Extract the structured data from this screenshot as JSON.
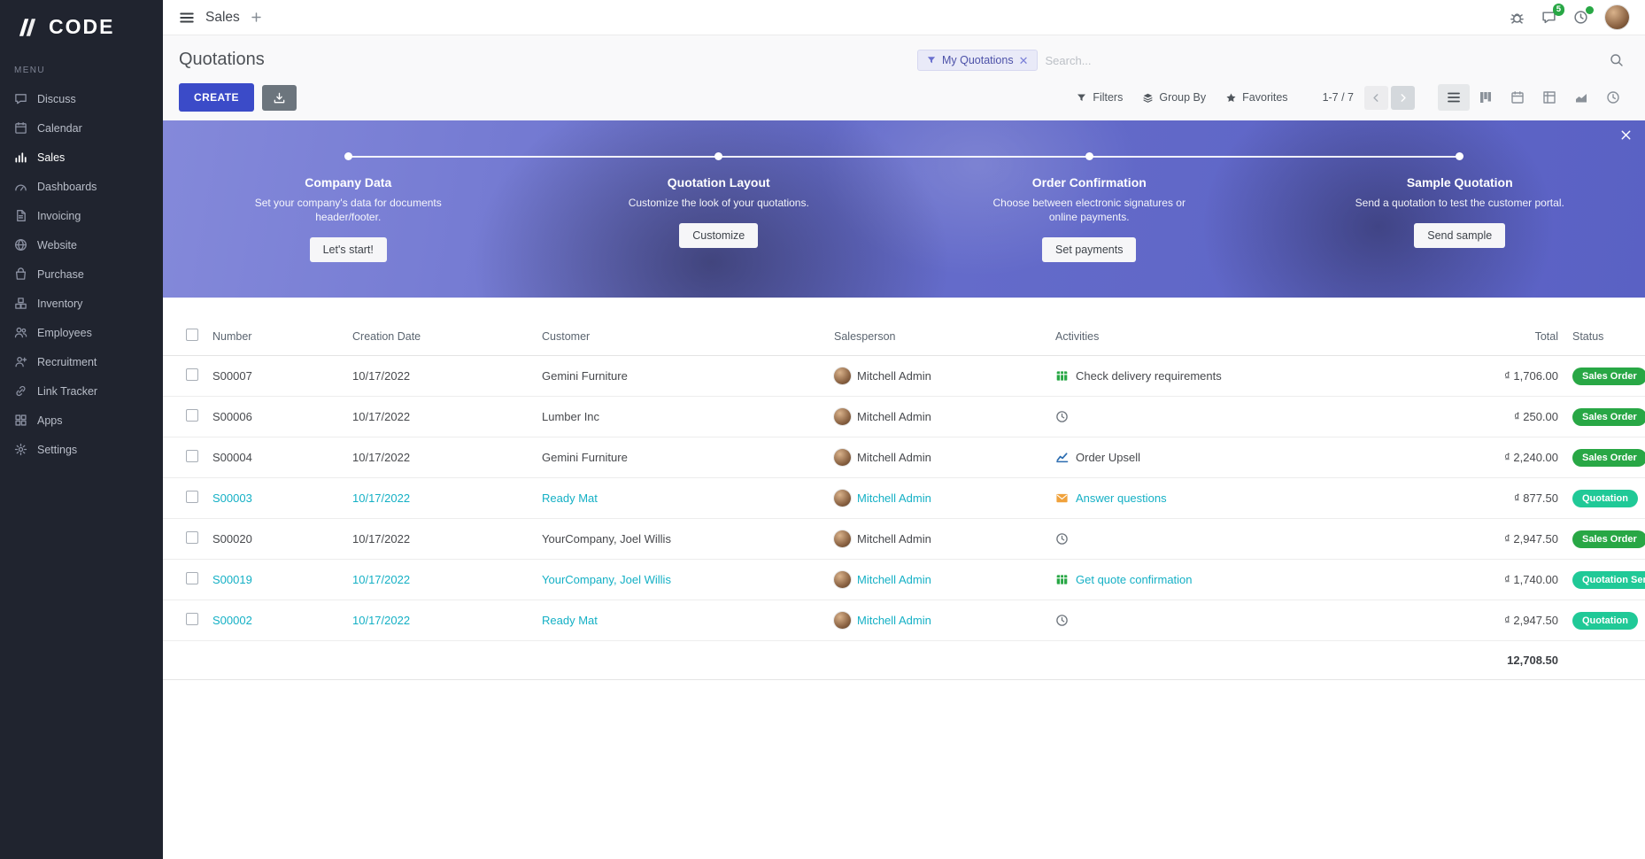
{
  "colors": {
    "accent": "#3b4bc8",
    "sidebar_bg": "#20242f",
    "teal": "#14b0c5",
    "green": "#28a745",
    "quotation_badge": "#20c997",
    "orange": "#f0a23c",
    "banner": "#5c63c6"
  },
  "sidebar": {
    "logo": "CODE",
    "menu_label": "MENU",
    "items": [
      {
        "label": "Discuss",
        "icon": "discuss-icon"
      },
      {
        "label": "Calendar",
        "icon": "calendar-icon"
      },
      {
        "label": "Sales",
        "icon": "sales-icon",
        "active": true
      },
      {
        "label": "Dashboards",
        "icon": "dashboards-icon"
      },
      {
        "label": "Invoicing",
        "icon": "invoicing-icon"
      },
      {
        "label": "Website",
        "icon": "website-icon"
      },
      {
        "label": "Purchase",
        "icon": "purchase-icon"
      },
      {
        "label": "Inventory",
        "icon": "inventory-icon"
      },
      {
        "label": "Employees",
        "icon": "employees-icon"
      },
      {
        "label": "Recruitment",
        "icon": "recruitment-icon"
      },
      {
        "label": "Link Tracker",
        "icon": "link-icon"
      },
      {
        "label": "Apps",
        "icon": "apps-icon"
      },
      {
        "label": "Settings",
        "icon": "settings-icon"
      }
    ]
  },
  "topbar": {
    "app_name": "Sales",
    "messages_badge": "5"
  },
  "page": {
    "title": "Quotations"
  },
  "search": {
    "facet_label": "My Quotations",
    "placeholder": "Search..."
  },
  "controls": {
    "create_label": "CREATE",
    "filters_label": "Filters",
    "group_by_label": "Group By",
    "favorites_label": "Favorites",
    "pager": "1-7 / 7",
    "views": [
      {
        "name": "list",
        "active": true
      },
      {
        "name": "kanban"
      },
      {
        "name": "calendar"
      },
      {
        "name": "pivot"
      },
      {
        "name": "graph"
      },
      {
        "name": "activity"
      }
    ]
  },
  "banner": {
    "steps": [
      {
        "title": "Company Data",
        "desc": "Set your company's data for documents header/footer.",
        "button": "Let's start!"
      },
      {
        "title": "Quotation Layout",
        "desc": "Customize the look of your quotations.",
        "button": "Customize"
      },
      {
        "title": "Order Confirmation",
        "desc": "Choose between electronic signatures or online payments.",
        "button": "Set payments"
      },
      {
        "title": "Sample Quotation",
        "desc": "Send a quotation to test the customer portal.",
        "button": "Send sample"
      }
    ]
  },
  "table": {
    "headers": {
      "number": "Number",
      "date": "Creation Date",
      "customer": "Customer",
      "salesperson": "Salesperson",
      "activities": "Activities",
      "total": "Total",
      "status": "Status"
    },
    "rows": [
      {
        "number": "S00007",
        "date": "10/17/2022",
        "customer": "Gemini Furniture",
        "salesperson": "Mitchell Admin",
        "activity": "Check delivery requirements",
        "activity_icon": "spreadsheet-icon",
        "total": "₫ 1,706.00",
        "status": "Sales Order",
        "status_variant": "order",
        "teal": false
      },
      {
        "number": "S00006",
        "date": "10/17/2022",
        "customer": "Lumber Inc",
        "salesperson": "Mitchell Admin",
        "activity": "",
        "activity_icon": "clock-icon",
        "total": "₫ 250.00",
        "status": "Sales Order",
        "status_variant": "order",
        "teal": false
      },
      {
        "number": "S00004",
        "date": "10/17/2022",
        "customer": "Gemini Furniture",
        "salesperson": "Mitchell Admin",
        "activity": "Order Upsell",
        "activity_icon": "line-chart-icon",
        "total": "₫ 2,240.00",
        "status": "Sales Order",
        "status_variant": "order",
        "teal": false
      },
      {
        "number": "S00003",
        "date": "10/17/2022",
        "customer": "Ready Mat",
        "salesperson": "Mitchell Admin",
        "activity": "Answer questions",
        "activity_icon": "envelope-icon",
        "total": "₫ 877.50",
        "status": "Quotation",
        "status_variant": "quotation",
        "teal": true
      },
      {
        "number": "S00020",
        "date": "10/17/2022",
        "customer": "YourCompany, Joel Willis",
        "salesperson": "Mitchell Admin",
        "activity": "",
        "activity_icon": "clock-icon",
        "total": "₫ 2,947.50",
        "status": "Sales Order",
        "status_variant": "order",
        "teal": false
      },
      {
        "number": "S00019",
        "date": "10/17/2022",
        "customer": "YourCompany, Joel Willis",
        "salesperson": "Mitchell Admin",
        "activity": "Get quote confirmation",
        "activity_icon": "spreadsheet-icon",
        "total": "₫ 1,740.00",
        "status": "Quotation Sent",
        "status_variant": "quotation",
        "teal": true
      },
      {
        "number": "S00002",
        "date": "10/17/2022",
        "customer": "Ready Mat",
        "salesperson": "Mitchell Admin",
        "activity": "",
        "activity_icon": "clock-icon",
        "total": "₫ 2,947.50",
        "status": "Quotation",
        "status_variant": "quotation",
        "teal": true
      }
    ],
    "footer_total": "12,708.50"
  }
}
